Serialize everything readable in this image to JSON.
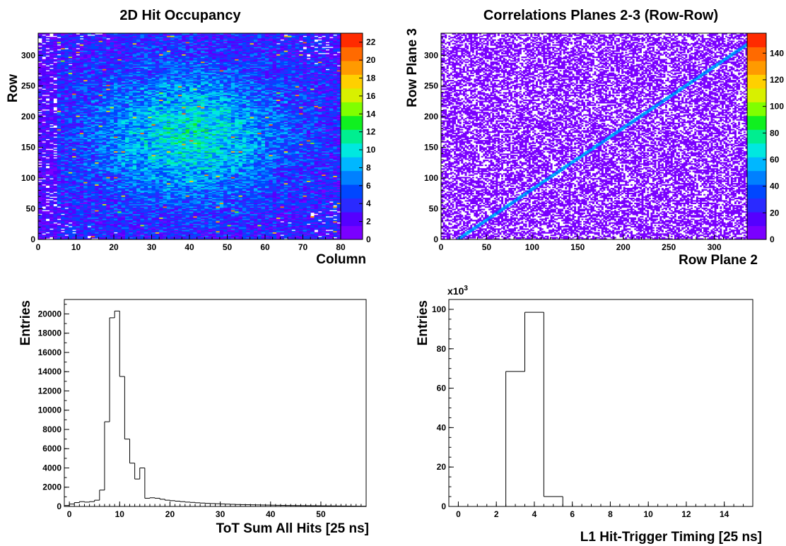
{
  "colors": {
    "palette": [
      "#7a00ff",
      "#5500ff",
      "#2a2aff",
      "#0047ff",
      "#0080ff",
      "#00b7ff",
      "#00e8e0",
      "#00ee90",
      "#10f020",
      "#80ff00",
      "#d8f000",
      "#ffd000",
      "#ff9a00",
      "#ff6a00",
      "#ff2b00"
    ],
    "axis": "#000000",
    "histogram_line": "#000000"
  },
  "chart_data": [
    {
      "type": "heatmap",
      "title": "2D Hit Occupancy",
      "xlabel": "Column",
      "ylabel": "Row",
      "xlim": [
        0,
        80
      ],
      "ylim": [
        0,
        336
      ],
      "xticks": [
        0,
        10,
        20,
        30,
        40,
        50,
        60,
        70,
        80
      ],
      "yticks": [
        0,
        50,
        100,
        150,
        200,
        250,
        300
      ],
      "zlim": [
        0,
        23
      ],
      "zticks": [
        0,
        2,
        4,
        6,
        8,
        10,
        12,
        14,
        16,
        18,
        20,
        22
      ],
      "bins": {
        "x": 80,
        "y": 168
      },
      "grid": false,
      "description_of_values": {
        "peak_region": {
          "column": 40,
          "row": 170,
          "typical_value": 10
        },
        "edge_low_columns": [
          0,
          1,
          2,
          3,
          4
        ],
        "edge_low_value": 1
      }
    },
    {
      "type": "heatmap",
      "title": "Correlations Planes 2-3 (Row-Row)",
      "xlabel": "Row Plane 2",
      "ylabel": "Row Plane 3",
      "xlim": [
        0,
        336
      ],
      "ylim": [
        0,
        336
      ],
      "xticks": [
        0,
        50,
        100,
        150,
        200,
        250,
        300
      ],
      "yticks": [
        0,
        50,
        100,
        150,
        200,
        250,
        300
      ],
      "zlim": [
        0,
        155
      ],
      "zticks": [
        0,
        20,
        40,
        60,
        80,
        100,
        120,
        140
      ],
      "bins": {
        "x": 168,
        "y": 168
      },
      "grid": false,
      "correlation_line": {
        "x_start": 18,
        "y_start": 0,
        "x_end": 336,
        "y_end": 318,
        "typical_value": 50
      }
    },
    {
      "type": "histogram",
      "title": "",
      "xlabel": "ToT Sum All Hits [25 ns]",
      "ylabel": "Entries",
      "xlim": [
        -1,
        59
      ],
      "ylim": [
        0,
        21500
      ],
      "xticks": [
        0,
        10,
        20,
        30,
        40,
        50
      ],
      "yticks": [
        0,
        2000,
        4000,
        6000,
        8000,
        10000,
        12000,
        14000,
        16000,
        18000,
        20000
      ],
      "bin_width": 1,
      "x_start": -1,
      "values": [
        100,
        250,
        400,
        500,
        450,
        500,
        650,
        1700,
        8800,
        19600,
        20300,
        13500,
        7000,
        4500,
        2850,
        4000,
        850,
        900,
        850,
        750,
        650,
        600,
        550,
        500,
        450,
        420,
        380,
        350,
        320,
        300,
        280,
        260,
        240,
        220,
        200,
        190,
        180,
        170,
        160,
        150,
        140,
        130,
        120,
        110,
        100,
        95,
        90,
        85,
        80,
        75,
        70,
        65,
        60,
        55,
        50,
        45,
        40,
        35,
        30,
        25
      ],
      "grid": false
    },
    {
      "type": "histogram",
      "title": "",
      "xlabel": "L1 Hit-Trigger Timing [25 ns]",
      "ylabel": "Entries",
      "y_multiplier_label": "x10",
      "y_multiplier_exponent": "3",
      "xlim": [
        -0.5,
        15.5
      ],
      "ylim": [
        0,
        105000
      ],
      "xticks": [
        0,
        2,
        4,
        6,
        8,
        10,
        12,
        14
      ],
      "yticks": [
        0,
        20000,
        40000,
        60000,
        80000,
        100000
      ],
      "ytick_labels": [
        "0",
        "20",
        "40",
        "60",
        "80",
        "100"
      ],
      "bin_width": 1,
      "x_start": -0.5,
      "values": [
        0,
        0,
        0,
        68500,
        98500,
        5000,
        0,
        0,
        0,
        0,
        0,
        0,
        0,
        0,
        0,
        0
      ],
      "grid": false
    }
  ]
}
